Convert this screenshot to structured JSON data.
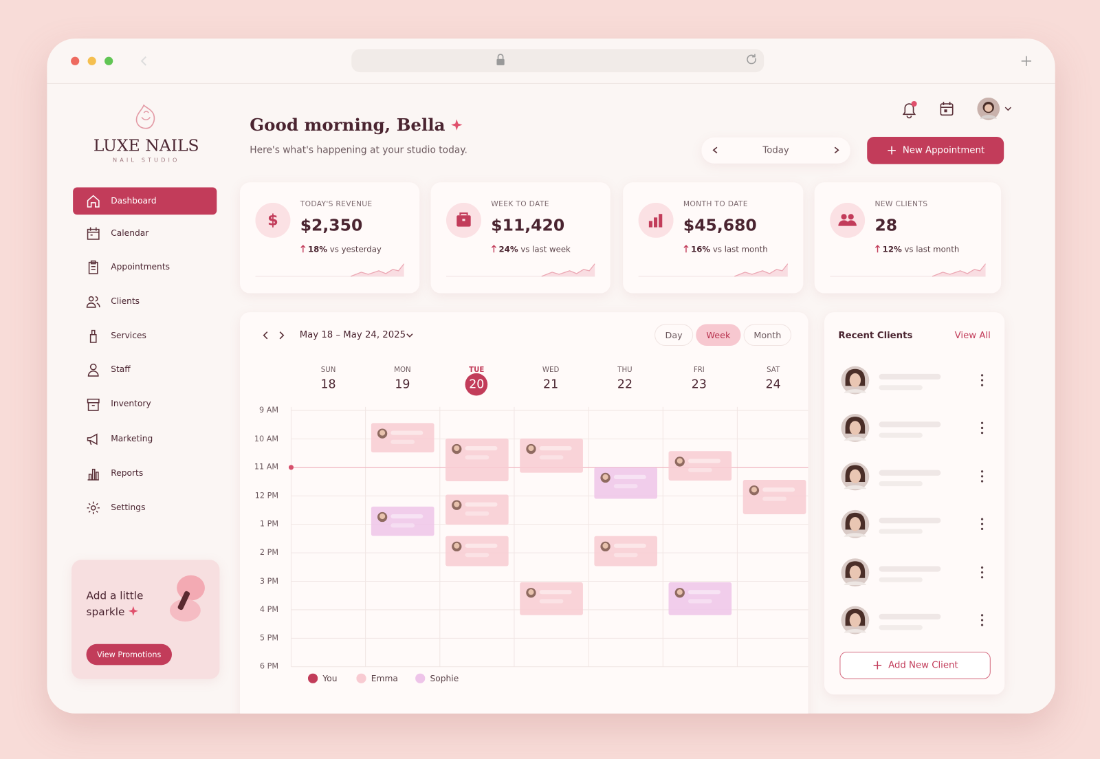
{
  "brand": {
    "name": "LUXE NAILS",
    "tagline": "NAIL STUDIO"
  },
  "nav": [
    {
      "label": "Dashboard",
      "active": true
    },
    {
      "label": "Calendar"
    },
    {
      "label": "Appointments"
    },
    {
      "label": "Clients"
    },
    {
      "label": "Services"
    },
    {
      "label": "Staff"
    },
    {
      "label": "Inventory"
    },
    {
      "label": "Marketing"
    },
    {
      "label": "Reports"
    },
    {
      "label": "Settings"
    }
  ],
  "promo": {
    "text": "Add a little sparkle",
    "button": "View Promotions"
  },
  "header": {
    "greeting": "Good morning, Bella",
    "subtitle": "Here's what's happening at your studio today.",
    "date_label": "Today",
    "new_button": "New Appointment"
  },
  "stats": [
    {
      "label": "TODAY'S REVENUE",
      "value": "$2,350",
      "change": "18%",
      "comparison": "vs yesterday"
    },
    {
      "label": "WEEK TO DATE",
      "value": "$11,420",
      "change": "24%",
      "comparison": "vs last week"
    },
    {
      "label": "MONTH TO DATE",
      "value": "$45,680",
      "change": "16%",
      "comparison": "vs last month"
    },
    {
      "label": "NEW CLIENTS",
      "value": "28",
      "change": "12%",
      "comparison": "vs last month"
    }
  ],
  "calendar": {
    "range": "May 18 – May 24, 2025",
    "views": [
      {
        "label": "Day"
      },
      {
        "label": "Week",
        "active": true
      },
      {
        "label": "Month"
      }
    ],
    "days": [
      {
        "name": "SUN",
        "date": "18"
      },
      {
        "name": "MON",
        "date": "19"
      },
      {
        "name": "TUE",
        "date": "20",
        "today": true
      },
      {
        "name": "WED",
        "date": "21"
      },
      {
        "name": "THU",
        "date": "22"
      },
      {
        "name": "FRI",
        "date": "23"
      },
      {
        "name": "SAT",
        "date": "24"
      }
    ],
    "times": [
      "9 AM",
      "10 AM",
      "11 AM",
      "12 PM",
      "1 PM",
      "2 PM",
      "3 PM",
      "4 PM",
      "5 PM",
      "6 PM"
    ],
    "legend": [
      {
        "name": "You",
        "color": "#c23c5a"
      },
      {
        "name": "Emma",
        "color": "#f8cbd2"
      },
      {
        "name": "Sophie",
        "color": "#eec4e9"
      }
    ]
  },
  "recent_clients": {
    "title": "Recent Clients",
    "link": "View All",
    "button": "Add New Client"
  }
}
